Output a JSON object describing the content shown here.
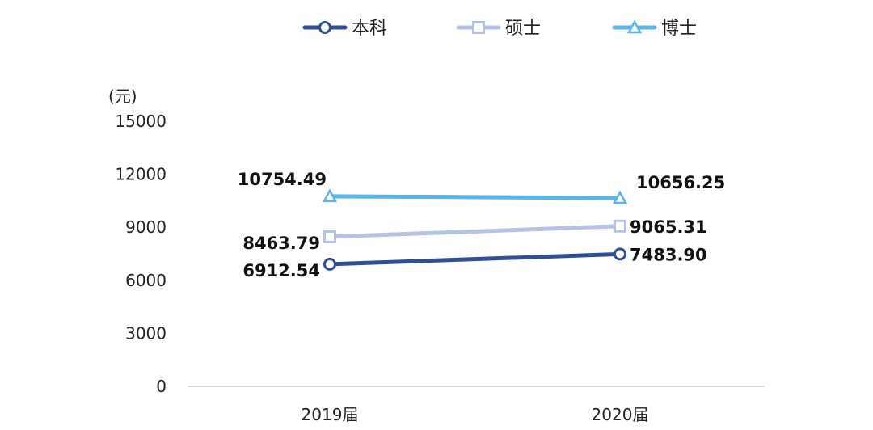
{
  "chart_data": {
    "type": "line",
    "categories": [
      "2019届",
      "2020届"
    ],
    "ylabel": "(元)",
    "ylim": [
      0,
      15000
    ],
    "yticks": [
      0,
      3000,
      6000,
      9000,
      12000,
      15000
    ],
    "grid": false,
    "legend_position": "top",
    "series": [
      {
        "name": "本科",
        "values": [
          6912.54,
          7483.9
        ],
        "labels": [
          "6912.54",
          "7483.90"
        ],
        "color": "#2f4f96",
        "marker": "circle",
        "label_side": [
          "left",
          "right"
        ]
      },
      {
        "name": "硕士",
        "values": [
          8463.79,
          9065.31
        ],
        "labels": [
          "8463.79",
          "9065.31"
        ],
        "color": "#b4c3e4",
        "marker": "square",
        "label_side": [
          "left",
          "right"
        ]
      },
      {
        "name": "博士",
        "values": [
          10754.49,
          10656.25
        ],
        "labels": [
          "10754.49",
          "10656.25"
        ],
        "color": "#5ab4e5",
        "marker": "triangle",
        "label_side": [
          "above-left",
          "above-right"
        ]
      }
    ]
  }
}
